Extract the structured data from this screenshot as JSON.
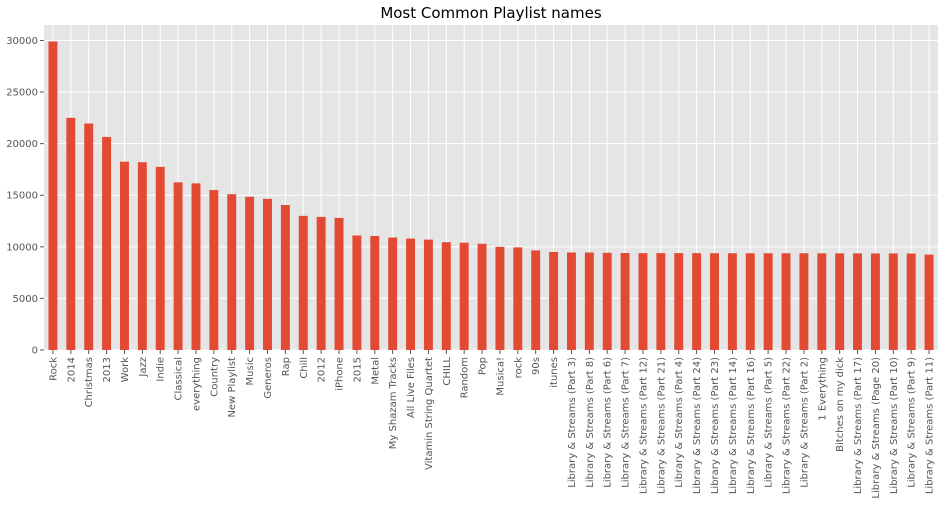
{
  "chart_data": {
    "type": "bar",
    "title": "Most Common Playlist names",
    "xlabel": "",
    "ylabel": "",
    "ylim": [
      0,
      31500
    ],
    "yticks": [
      0,
      5000,
      10000,
      15000,
      20000,
      25000,
      30000
    ],
    "grid": true,
    "legend": "none",
    "colors": {
      "bar": "#E24A33",
      "plot_bg": "#E5E5E5",
      "grid": "#FFFFFF",
      "tick_text": "#555555"
    },
    "categories": [
      "Rock",
      "2014",
      "Christmas",
      "2013",
      "Work",
      "Jazz",
      "Indie",
      "Classical",
      "everything",
      "Country",
      "New Playlist",
      "Music",
      "Generos",
      "Rap",
      "Chill",
      "2012",
      "iPhone",
      "2015",
      "Metal",
      "My Shazam Tracks",
      "All Live Files",
      "Vitamin String Quartet",
      "CHILL",
      "Random",
      "Pop",
      "Musica!",
      "rock",
      "90s",
      "itunes",
      "Library & Streams (Part 3)",
      "Library & Streams (Part 8)",
      "Library & Streams (Part 6)",
      "Library & Streams (Part 7)",
      "Library & Streams (Part 12)",
      "Library & Streams (Part 21)",
      "Library & Streams (Part 4)",
      "Library & Streams (Part 24)",
      "Library & Streams (Part 23)",
      "Library & Streams (Part 14)",
      "Library & Streams (Part 16)",
      "Library & Streams (Part 5)",
      "Library & Streams (Part 22)",
      "Library & Streams (Part 2)",
      "1 Everything",
      "Bitches on my dick",
      "Library & Streams (Part 17)",
      "Library & Streams (Page 20)",
      "Library & Streams (Part 10)",
      "Library & Streams (Part 9)",
      "Library & Streams (Part 11)"
    ],
    "values": [
      29900,
      22500,
      21950,
      20650,
      18250,
      18200,
      17750,
      16250,
      16150,
      15500,
      15100,
      14850,
      14650,
      14050,
      13000,
      12900,
      12800,
      11100,
      11050,
      10900,
      10800,
      10700,
      10450,
      10400,
      10300,
      10000,
      9950,
      9650,
      9500,
      9450,
      9450,
      9420,
      9400,
      9390,
      9390,
      9390,
      9390,
      9380,
      9380,
      9380,
      9380,
      9380,
      9380,
      9370,
      9370,
      9370,
      9360,
      9360,
      9350,
      9250
    ]
  }
}
